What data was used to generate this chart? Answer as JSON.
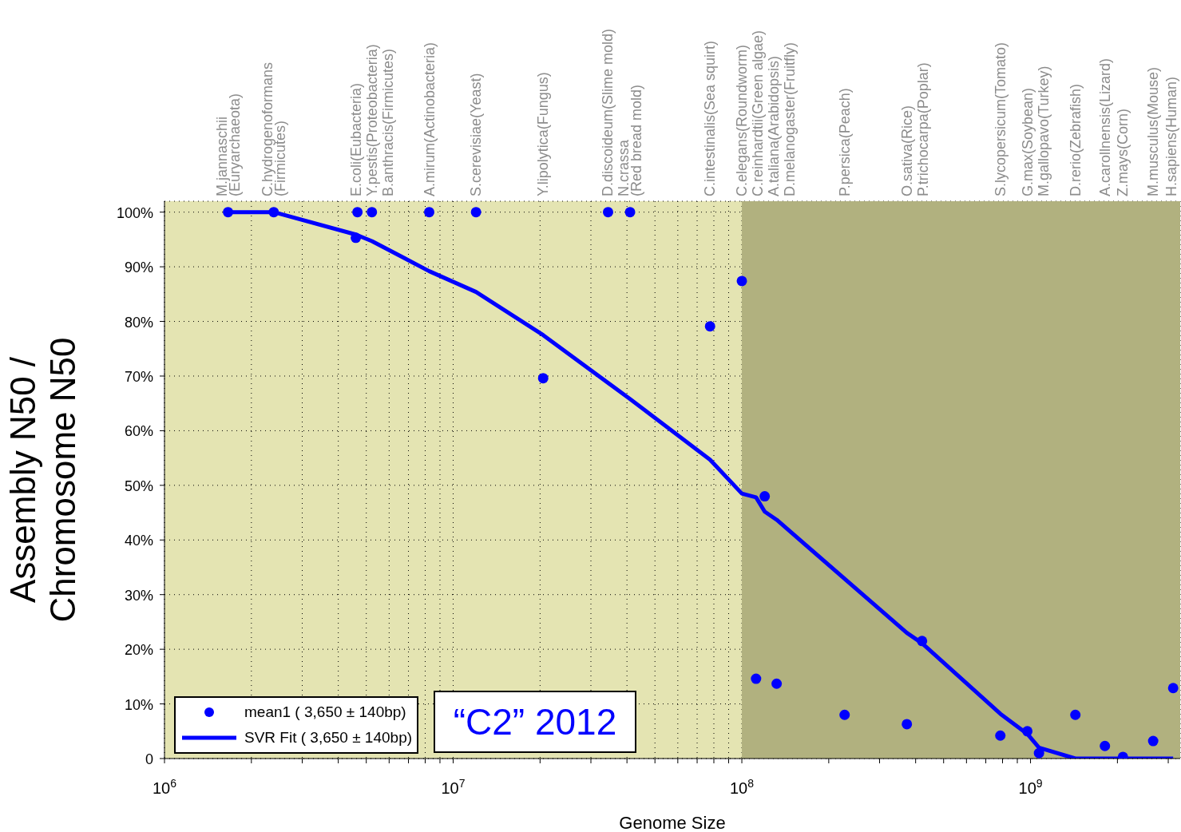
{
  "chart_data": {
    "type": "scatter",
    "xlabel": "Genome Size",
    "ylabel": "Assembly N50 /\nChromosome N50",
    "annotations": [
      "M.jannaschii\n(Euryarchaeota)",
      "C.hydrogenoformans\n(Firmicutes)",
      "E.coli(Eubacteria)",
      "Y.pestis(Proteobacteria)",
      "B.anthracis(Firmicutes)",
      "A.mirum(Actinobacteria)",
      "S.cerevisiae(Yeast)",
      "Y.lipolytica(Fungus)",
      "D.discoideum(Slime mold)",
      "N.crassa\n(Red bread mold)",
      "C.intestinalis(Sea squirt)",
      "C.elegans(Roundworm)",
      "C.reinhardtii(Green algae)",
      "A.taliana(Arabidopsis)",
      "D.melanogaster(Fruitfly)",
      "P.persica(Peach)",
      "O.sativa(Rice)",
      "P.trichocarpa(Poplar)",
      "S.lycopersicum(Tomato)",
      "G.max(Soybean)",
      "M.gallopavo(Turkey)",
      "D.rerio(Zebrafish)",
      "A.carollnensis(Lizard)",
      "Z.mays(Corn)",
      "M.musculus(Mouse)",
      "H.sapiens(Human)",
      "“C2” 2012"
    ],
    "log": "x",
    "grid": true,
    "legend": "bottom left",
    "xlim": [
      1000000,
      3300000000
    ],
    "xticks": [
      {
        "value": 1000000,
        "label": "10$^{6}$"
      },
      {
        "value": 2000000,
        "label": null
      },
      {
        "value": 3000000,
        "label": null
      },
      {
        "value": 4000000,
        "label": null
      },
      {
        "value": 5000000,
        "label": null
      },
      {
        "value": 6000000,
        "label": null
      },
      {
        "value": 7000000,
        "label": null
      },
      {
        "value": 8000000,
        "label": null
      },
      {
        "value": 9000000,
        "label": null
      },
      {
        "value": 10000000,
        "label": "10$^{7}$"
      },
      {
        "value": 20000000,
        "label": null
      },
      {
        "value": 30000000,
        "label": null
      },
      {
        "value": 40000000,
        "label": null
      },
      {
        "value": 50000000,
        "label": null
      },
      {
        "value": 60000000,
        "label": null
      },
      {
        "value": 70000000,
        "label": null
      },
      {
        "value": 80000000,
        "label": null
      },
      {
        "value": 90000000,
        "label": null
      },
      {
        "value": 100000000,
        "label": "10$^{8}$"
      },
      {
        "value": 200000000,
        "label": null
      },
      {
        "value": 300000000,
        "label": null
      },
      {
        "value": 400000000,
        "label": null
      },
      {
        "value": 500000000,
        "label": null
      },
      {
        "value": 600000000,
        "label": null
      },
      {
        "value": 700000000,
        "label": null
      },
      {
        "value": 800000000,
        "label": null
      },
      {
        "value": 900000000,
        "label": null
      },
      {
        "value": 1000000000,
        "label": "10$^{9}$"
      },
      {
        "value": 2000000000,
        "label": null
      },
      {
        "value": 3000000000,
        "label": null
      }
    ],
    "ylim": [
      0,
      102
    ],
    "yticks": [
      {
        "value": 0,
        "label": "0"
      },
      {
        "value": 10,
        "label": "10%"
      },
      {
        "value": 20,
        "label": "20%"
      },
      {
        "value": 30,
        "label": "30%"
      },
      {
        "value": 40,
        "label": "40%"
      },
      {
        "value": 50,
        "label": "50%"
      },
      {
        "value": 60,
        "label": "60%"
      },
      {
        "value": 70,
        "label": "70%"
      },
      {
        "value": 80,
        "label": "80%"
      },
      {
        "value": 90,
        "label": "90%"
      },
      {
        "value": 100,
        "label": "100%"
      }
    ],
    "bands": [
      {
        "axis": "x",
        "from": 100000000,
        "to": 3300000000,
        "color": "#b1b17f"
      }
    ],
    "series": [
      {
        "name": "mean1 ( 3,650 ± 140bp)",
        "type": "scatter",
        "marker": "circle",
        "color": "#0000ff",
        "x": [
          1660000,
          2390000,
          4600000,
          4660000,
          5230000,
          8260000,
          12000000,
          20500000,
          34400000,
          41000000,
          77600000,
          100000000,
          120000000,
          112000000,
          132000000,
          227000000,
          373000000,
          421000000,
          786000000,
          975000000,
          1070000000,
          1430000000,
          1810000000,
          2090000000,
          2660000000,
          3120000000
        ],
        "values": [
          100,
          100,
          95.3,
          100,
          100,
          100,
          100,
          69.6,
          100,
          100,
          79.1,
          87.4,
          48,
          14.6,
          13.7,
          8,
          6.3,
          21.5,
          4.2,
          5,
          1,
          8,
          2.3,
          0.3,
          3.2,
          12.9
        ]
      },
      {
        "name": "SVR Fit ( 3,650 ± 140bp)",
        "type": "line",
        "marker": "none",
        "line_style": "solid",
        "color": "#0000ff",
        "x": [
          1660000,
          2390000,
          4600000,
          5230000,
          8260000,
          12000000,
          20500000,
          41000000,
          77600000,
          100000000,
          112000000,
          120000000,
          132000000,
          373000000,
          421000000,
          786000000,
          975000000,
          1070000000,
          1430000000,
          3120000000
        ],
        "values": [
          100,
          100,
          95.9,
          94.7,
          89.2,
          85.4,
          77.5,
          65.8,
          54.7,
          48.5,
          47.8,
          45.2,
          43.7,
          23,
          21.1,
          8.2,
          4.5,
          2,
          0,
          0
        ]
      }
    ]
  }
}
